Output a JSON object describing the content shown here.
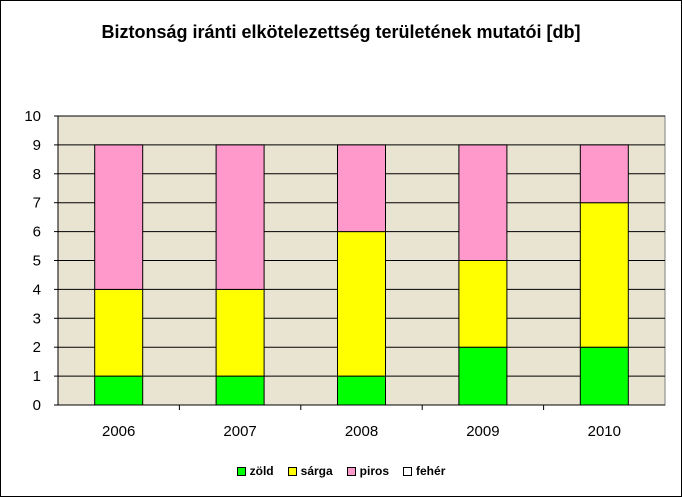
{
  "chart_data": {
    "type": "bar",
    "stacked": true,
    "title": "Biztonság iránti elkötelezettség területének mutatói [db]",
    "categories": [
      "2006",
      "2007",
      "2008",
      "2009",
      "2010"
    ],
    "series": [
      {
        "name": "zöld",
        "values": [
          1,
          1,
          1,
          2,
          2
        ],
        "color": "#00ff00"
      },
      {
        "name": "sárga",
        "values": [
          3,
          3,
          5,
          3,
          5
        ],
        "color": "#ffff00"
      },
      {
        "name": "piros",
        "values": [
          5,
          5,
          3,
          4,
          2
        ],
        "color": "#ff99cc"
      },
      {
        "name": "fehér",
        "values": [
          0,
          0,
          0,
          0,
          0
        ],
        "color": "#ffffff"
      }
    ],
    "ylim": [
      0,
      10
    ],
    "yticks": [
      "0",
      "1",
      "2",
      "3",
      "4",
      "5",
      "6",
      "7",
      "8",
      "9",
      "10"
    ],
    "grid": true,
    "legend_position": "bottom",
    "plot_background": "#e9e4d2",
    "gridline_color": "#000000"
  }
}
